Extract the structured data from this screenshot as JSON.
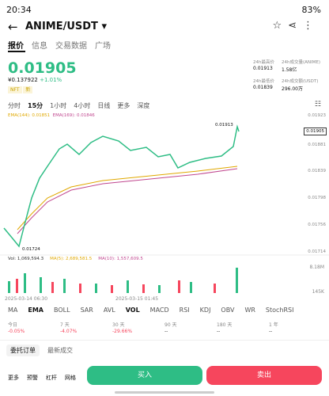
{
  "status": {
    "time": "20:34",
    "battery": "83%"
  },
  "header": {
    "title": "ANIME/USDT"
  },
  "tabs": [
    "报价",
    "信息",
    "交易数据",
    "广场"
  ],
  "price": {
    "last": "0.01905",
    "cny": "¥0.137922",
    "change": "+1.01%",
    "tags": [
      "NFT",
      "新"
    ]
  },
  "stats": [
    {
      "label": "24h最高价",
      "value": "0.01913"
    },
    {
      "label": "24h成交量(ANIME)",
      "value": "1.58亿"
    },
    {
      "label": "24h最低价",
      "value": "0.01839"
    },
    {
      "label": "24h成交额(USDT)",
      "value": "296.00万"
    }
  ],
  "intervals": [
    "分时",
    "15分",
    "1小时",
    "4小时",
    "日线",
    "更多",
    "深度"
  ],
  "ema": [
    "EMA(144): 0.01851",
    "EMA(169): 0.01846"
  ],
  "price_axis": [
    "0.01923",
    "0.01881",
    "0.01839",
    "0.01798",
    "0.01756",
    "0.01714"
  ],
  "current_price": "0.01905",
  "high_label": "0.01913",
  "low_label": "0.01724",
  "volume": {
    "legend": [
      "Vol: 1,069,594.3",
      "MA(5): 2,689,581.5",
      "MA(10): 1,557,609.5"
    ],
    "axis": [
      "8.18M",
      "145K"
    ]
  },
  "dates": [
    "2025-03-14 06:30",
    "2025-03-15 01:45"
  ],
  "indicators": [
    "MA",
    "EMA",
    "BOLL",
    "SAR",
    "AVL",
    "VOL",
    "MACD",
    "RSI",
    "KDJ",
    "OBV",
    "WR",
    "StochRSI"
  ],
  "periods": [
    {
      "label": "今日",
      "value": "-0.05%"
    },
    {
      "label": "7 天",
      "value": "-4.07%"
    },
    {
      "label": "30 天",
      "value": "-29.66%"
    },
    {
      "label": "90 天",
      "value": "--"
    },
    {
      "label": "180 天",
      "value": "--"
    },
    {
      "label": "1 年",
      "value": "--"
    }
  ],
  "order_tabs": [
    "委托订单",
    "最新成交"
  ],
  "bottom": {
    "tools": [
      "更多",
      "预警",
      "杠杆",
      "网格"
    ],
    "buy": "买入",
    "sell": "卖出"
  }
}
